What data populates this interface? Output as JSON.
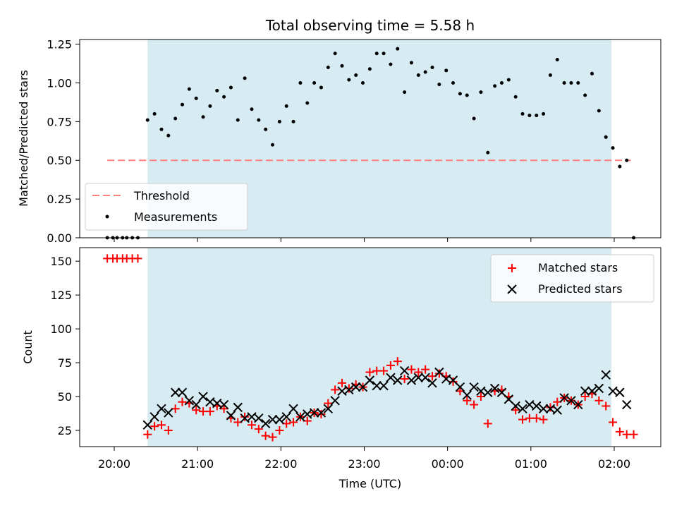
{
  "chart_data": [
    {
      "type": "scatter",
      "title": "Total observing time = 5.58 h",
      "xlabel": "",
      "ylabel": "Matched/Predicted stars",
      "ylim": [
        0,
        1.28
      ],
      "yticks": [
        "0.00",
        "0.25",
        "0.50",
        "0.75",
        "1.00",
        "1.25"
      ],
      "highlight_span": {
        "start": "20:24",
        "end": "01:58",
        "color": "#add8e6"
      },
      "threshold": {
        "name": "Threshold",
        "value": 0.5,
        "x_start": "19:55",
        "x_end": "02:12",
        "color": "#ff7f7f"
      },
      "legend": {
        "placement": "lower-left",
        "entries": [
          "Threshold",
          "Measurements"
        ]
      },
      "series": [
        {
          "name": "Measurements",
          "points": [
            [
              "19:55",
              0.0
            ],
            [
              "19:59",
              0.0
            ],
            [
              "20:02",
              0.0
            ],
            [
              "20:06",
              0.0
            ],
            [
              "20:09",
              0.0
            ],
            [
              "20:13",
              0.0
            ],
            [
              "20:17",
              0.0
            ],
            [
              "20:24",
              0.76
            ],
            [
              "20:29",
              0.8
            ],
            [
              "20:34",
              0.7
            ],
            [
              "20:39",
              0.66
            ],
            [
              "20:44",
              0.77
            ],
            [
              "20:49",
              0.86
            ],
            [
              "20:54",
              0.96
            ],
            [
              "20:59",
              0.9
            ],
            [
              "21:04",
              0.78
            ],
            [
              "21:09",
              0.85
            ],
            [
              "21:14",
              0.95
            ],
            [
              "21:19",
              0.91
            ],
            [
              "21:24",
              0.97
            ],
            [
              "21:29",
              0.76
            ],
            [
              "21:34",
              1.03
            ],
            [
              "21:39",
              0.83
            ],
            [
              "21:44",
              0.76
            ],
            [
              "21:49",
              0.7
            ],
            [
              "21:54",
              0.6
            ],
            [
              "21:59",
              0.75
            ],
            [
              "22:04",
              0.85
            ],
            [
              "22:09",
              0.75
            ],
            [
              "22:14",
              1.0
            ],
            [
              "22:19",
              0.87
            ],
            [
              "22:24",
              1.0
            ],
            [
              "22:29",
              0.97
            ],
            [
              "22:34",
              1.1
            ],
            [
              "22:39",
              1.19
            ],
            [
              "22:44",
              1.11
            ],
            [
              "22:49",
              1.02
            ],
            [
              "22:54",
              1.05
            ],
            [
              "22:59",
              1.0
            ],
            [
              "23:04",
              1.09
            ],
            [
              "23:09",
              1.19
            ],
            [
              "23:14",
              1.19
            ],
            [
              "23:19",
              1.12
            ],
            [
              "23:24",
              1.22
            ],
            [
              "23:29",
              0.94
            ],
            [
              "23:34",
              1.13
            ],
            [
              "23:39",
              1.05
            ],
            [
              "23:44",
              1.07
            ],
            [
              "23:49",
              1.1
            ],
            [
              "23:54",
              0.99
            ],
            [
              "23:59",
              1.08
            ],
            [
              "00:04",
              1.0
            ],
            [
              "00:09",
              0.93
            ],
            [
              "00:14",
              0.92
            ],
            [
              "00:19",
              0.77
            ],
            [
              "00:24",
              0.94
            ],
            [
              "00:29",
              0.55
            ],
            [
              "00:34",
              0.98
            ],
            [
              "00:39",
              1.0
            ],
            [
              "00:44",
              1.02
            ],
            [
              "00:49",
              0.91
            ],
            [
              "00:54",
              0.8
            ],
            [
              "00:59",
              0.79
            ],
            [
              "01:04",
              0.79
            ],
            [
              "01:09",
              0.8
            ],
            [
              "01:14",
              1.05
            ],
            [
              "01:19",
              1.15
            ],
            [
              "01:24",
              1.0
            ],
            [
              "01:29",
              1.0
            ],
            [
              "01:34",
              1.0
            ],
            [
              "01:39",
              0.92
            ],
            [
              "01:44",
              1.06
            ],
            [
              "01:49",
              0.82
            ],
            [
              "01:54",
              0.65
            ],
            [
              "01:59",
              0.58
            ],
            [
              "02:04",
              0.46
            ],
            [
              "02:09",
              0.5
            ],
            [
              "02:14",
              0.0
            ]
          ]
        }
      ]
    },
    {
      "type": "scatter",
      "title": "",
      "xlabel": "Time (UTC)",
      "ylabel": "Count",
      "ylim": [
        13,
        160
      ],
      "yticks": [
        "25",
        "50",
        "75",
        "100",
        "125",
        "150"
      ],
      "xticks": [
        "20:00",
        "21:00",
        "22:00",
        "23:00",
        "00:00",
        "01:00",
        "02:00"
      ],
      "highlight_span": {
        "start": "20:24",
        "end": "01:58",
        "color": "#add8e6"
      },
      "legend": {
        "placement": "upper-right",
        "entries": [
          "Matched stars",
          "Predicted stars"
        ]
      },
      "series": [
        {
          "name": "Matched stars",
          "marker": "plus",
          "color": "#ff0000",
          "points": [
            [
              "19:55",
              152
            ],
            [
              "19:59",
              152
            ],
            [
              "20:02",
              152
            ],
            [
              "20:06",
              152
            ],
            [
              "20:09",
              152
            ],
            [
              "20:13",
              152
            ],
            [
              "20:17",
              152
            ],
            [
              "20:24",
              22
            ],
            [
              "20:29",
              28
            ],
            [
              "20:34",
              29
            ],
            [
              "20:39",
              25
            ],
            [
              "20:44",
              41
            ],
            [
              "20:49",
              46
            ],
            [
              "20:54",
              45
            ],
            [
              "20:59",
              40
            ],
            [
              "21:04",
              39
            ],
            [
              "21:09",
              39
            ],
            [
              "21:14",
              43
            ],
            [
              "21:19",
              41
            ],
            [
              "21:24",
              34
            ],
            [
              "21:29",
              31
            ],
            [
              "21:34",
              35
            ],
            [
              "21:39",
              29
            ],
            [
              "21:44",
              26
            ],
            [
              "21:49",
              21
            ],
            [
              "21:54",
              20
            ],
            [
              "21:59",
              25
            ],
            [
              "22:04",
              30
            ],
            [
              "22:09",
              31
            ],
            [
              "22:14",
              35
            ],
            [
              "22:19",
              32
            ],
            [
              "22:24",
              38
            ],
            [
              "22:29",
              37
            ],
            [
              "22:34",
              45
            ],
            [
              "22:39",
              55
            ],
            [
              "22:44",
              60
            ],
            [
              "22:49",
              56
            ],
            [
              "22:54",
              59
            ],
            [
              "22:59",
              57
            ],
            [
              "23:04",
              68
            ],
            [
              "23:09",
              69
            ],
            [
              "23:14",
              69
            ],
            [
              "23:19",
              73
            ],
            [
              "23:24",
              76
            ],
            [
              "23:29",
              63
            ],
            [
              "23:34",
              70
            ],
            [
              "23:39",
              68
            ],
            [
              "23:44",
              70
            ],
            [
              "23:49",
              65
            ],
            [
              "23:54",
              67
            ],
            [
              "23:59",
              65
            ],
            [
              "00:04",
              61
            ],
            [
              "00:09",
              54
            ],
            [
              "00:14",
              47
            ],
            [
              "00:19",
              44
            ],
            [
              "00:24",
              50
            ],
            [
              "00:29",
              30
            ],
            [
              "00:34",
              54
            ],
            [
              "00:39",
              55
            ],
            [
              "00:44",
              50
            ],
            [
              "00:49",
              40
            ],
            [
              "00:54",
              33
            ],
            [
              "00:59",
              34
            ],
            [
              "01:04",
              34
            ],
            [
              "01:09",
              33
            ],
            [
              "01:14",
              42
            ],
            [
              "01:19",
              46
            ],
            [
              "01:24",
              49
            ],
            [
              "01:29",
              47
            ],
            [
              "01:34",
              44
            ],
            [
              "01:39",
              50
            ],
            [
              "01:44",
              52
            ],
            [
              "01:49",
              47
            ],
            [
              "01:54",
              43
            ],
            [
              "01:59",
              31
            ],
            [
              "02:04",
              24
            ],
            [
              "02:09",
              22
            ],
            [
              "02:14",
              22
            ]
          ]
        },
        {
          "name": "Predicted stars",
          "marker": "x",
          "color": "#000000",
          "points": [
            [
              "20:24",
              29
            ],
            [
              "20:29",
              35
            ],
            [
              "20:34",
              41
            ],
            [
              "20:39",
              38
            ],
            [
              "20:44",
              53
            ],
            [
              "20:49",
              53
            ],
            [
              "20:54",
              47
            ],
            [
              "20:59",
              44
            ],
            [
              "21:04",
              50
            ],
            [
              "21:09",
              46
            ],
            [
              "21:14",
              45
            ],
            [
              "21:19",
              44
            ],
            [
              "21:24",
              36
            ],
            [
              "21:29",
              42
            ],
            [
              "21:34",
              34
            ],
            [
              "21:39",
              35
            ],
            [
              "21:44",
              34
            ],
            [
              "21:49",
              30
            ],
            [
              "21:54",
              33
            ],
            [
              "21:59",
              33
            ],
            [
              "22:04",
              35
            ],
            [
              "22:09",
              41
            ],
            [
              "22:14",
              35
            ],
            [
              "22:19",
              37
            ],
            [
              "22:24",
              38
            ],
            [
              "22:29",
              38
            ],
            [
              "22:34",
              41
            ],
            [
              "22:39",
              47
            ],
            [
              "22:44",
              54
            ],
            [
              "22:49",
              55
            ],
            [
              "22:54",
              57
            ],
            [
              "22:59",
              57
            ],
            [
              "23:04",
              62
            ],
            [
              "23:09",
              58
            ],
            [
              "23:14",
              58
            ],
            [
              "23:19",
              64
            ],
            [
              "23:24",
              62
            ],
            [
              "23:29",
              69
            ],
            [
              "23:34",
              62
            ],
            [
              "23:39",
              64
            ],
            [
              "23:44",
              64
            ],
            [
              "23:49",
              60
            ],
            [
              "23:54",
              68
            ],
            [
              "23:59",
              63
            ],
            [
              "00:04",
              62
            ],
            [
              "00:09",
              57
            ],
            [
              "00:14",
              51
            ],
            [
              "00:19",
              57
            ],
            [
              "00:24",
              54
            ],
            [
              "00:29",
              53
            ],
            [
              "00:34",
              56
            ],
            [
              "00:39",
              53
            ],
            [
              "00:44",
              48
            ],
            [
              "00:49",
              43
            ],
            [
              "00:54",
              41
            ],
            [
              "00:59",
              44
            ],
            [
              "01:04",
              43
            ],
            [
              "01:09",
              41
            ],
            [
              "01:14",
              41
            ],
            [
              "01:19",
              40
            ],
            [
              "01:24",
              49
            ],
            [
              "01:29",
              47
            ],
            [
              "01:34",
              44
            ],
            [
              "01:39",
              54
            ],
            [
              "01:44",
              54
            ],
            [
              "01:49",
              56
            ],
            [
              "01:54",
              66
            ],
            [
              "01:59",
              54
            ],
            [
              "02:04",
              53
            ],
            [
              "02:09",
              44
            ]
          ]
        }
      ]
    }
  ]
}
